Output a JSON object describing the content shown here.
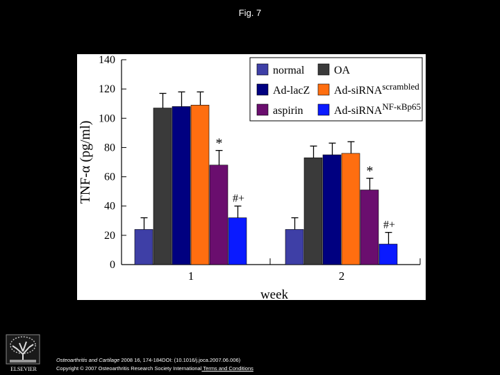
{
  "page": {
    "title": "Fig. 7"
  },
  "chart_data": {
    "type": "bar",
    "ylabel_main": "TNF-α",
    "ylabel_unit": "(pg/ml)",
    "xlabel": "week",
    "ylim": [
      0,
      140
    ],
    "yticks": [
      "0",
      "20",
      "40",
      "60",
      "80",
      "100",
      "120",
      "140"
    ],
    "categories": [
      "1",
      "2"
    ],
    "series": [
      {
        "name": "normal",
        "values": [
          24,
          24
        ],
        "errors": [
          8,
          8
        ],
        "annotation": [
          "",
          ""
        ],
        "color": "#3e3fa6"
      },
      {
        "name": "OA",
        "values": [
          107,
          73
        ],
        "errors": [
          10,
          8
        ],
        "annotation": [
          "",
          ""
        ],
        "color": "#3a3a3a"
      },
      {
        "name": "Ad-lacZ",
        "values": [
          108,
          75
        ],
        "errors": [
          10,
          8
        ],
        "annotation": [
          "",
          ""
        ],
        "color": "#000080"
      },
      {
        "name": "Ad-siRNA",
        "name_sup": "scrambled",
        "values": [
          109,
          76
        ],
        "errors": [
          9,
          8
        ],
        "annotation": [
          "",
          ""
        ],
        "color": "#ff6e10"
      },
      {
        "name": "aspirin",
        "values": [
          68,
          51
        ],
        "errors": [
          10,
          8
        ],
        "annotation": [
          "*",
          "*"
        ],
        "color": "#6a0e6e"
      },
      {
        "name": "Ad-siRNA",
        "name_sup": "NF-κBp65",
        "values": [
          32,
          14
        ],
        "errors": [
          8,
          8
        ],
        "annotation": [
          "#+",
          "#+"
        ],
        "color": "#0a1aff"
      }
    ],
    "grid": false,
    "legend_position": "top-right"
  },
  "footer": {
    "publisher": "ELSEVIER",
    "journal": "Osteoarthritis and Cartilage",
    "citation": " 2008 16, 174-184DOI: (10.1016/j.joca.2007.06.006)",
    "copyright": "Copyright © 2007 Osteoarthritis Research Society International",
    "terms_link": " Terms and Conditions"
  }
}
